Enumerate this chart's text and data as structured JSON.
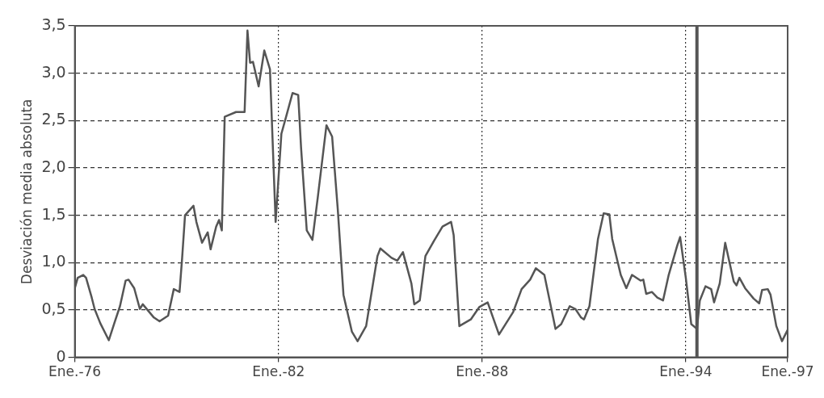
{
  "chart_data": {
    "type": "line",
    "ylabel": "Desviación media absoluta",
    "x": [
      "1976-01",
      "1976-02",
      "1976-04",
      "1976-05",
      "1976-07",
      "1976-08",
      "1976-10",
      "1977-01",
      "1977-03",
      "1977-05",
      "1977-07",
      "1977-08",
      "1977-10",
      "1977-12",
      "1978-01",
      "1978-05",
      "1978-07",
      "1978-10",
      "1978-12",
      "1979-02",
      "1979-03",
      "1979-04",
      "1979-07",
      "1979-08",
      "1979-10",
      "1979-12",
      "1980-01",
      "1980-03",
      "1980-04",
      "1980-05",
      "1980-06",
      "1980-10",
      "1981-01",
      "1981-02",
      "1981-03",
      "1981-04",
      "1981-06",
      "1981-08",
      "1981-10",
      "1981-12",
      "1982-02",
      "1982-04",
      "1982-06",
      "1982-08",
      "1982-09",
      "1982-11",
      "1983-01",
      "1983-03",
      "1983-06",
      "1983-08",
      "1983-10",
      "1983-12",
      "1984-03",
      "1984-05",
      "1984-08",
      "1984-12",
      "1985-01",
      "1985-05",
      "1985-07",
      "1985-09",
      "1985-12",
      "1986-01",
      "1986-03",
      "1986-05",
      "1986-08",
      "1986-11",
      "1987-02",
      "1987-03",
      "1987-05",
      "1987-09",
      "1987-12",
      "1988-03",
      "1988-07",
      "1988-12",
      "1989-03",
      "1989-06",
      "1989-08",
      "1989-11",
      "1990-03",
      "1990-05",
      "1990-08",
      "1990-10",
      "1990-12",
      "1991-01",
      "1991-03",
      "1991-06",
      "1991-08",
      "1991-10",
      "1991-11",
      "1992-02",
      "1992-04",
      "1992-06",
      "1992-09",
      "1992-10",
      "1992-11",
      "1993-01",
      "1993-03",
      "1993-05",
      "1993-07",
      "1993-10",
      "1993-11",
      "1994-01",
      "1994-03",
      "1994-05",
      "1994-06",
      "1994-08",
      "1994-10",
      "1994-11",
      "1995-01",
      "1995-03",
      "1995-04",
      "1995-06",
      "1995-07",
      "1995-08",
      "1995-10",
      "1996-01",
      "1996-03",
      "1996-04",
      "1996-06",
      "1996-07",
      "1996-09",
      "1996-11",
      "1997-01"
    ],
    "values": [
      0.73,
      0.84,
      0.87,
      0.84,
      0.63,
      0.51,
      0.36,
      0.18,
      0.36,
      0.54,
      0.81,
      0.82,
      0.73,
      0.51,
      0.56,
      0.42,
      0.38,
      0.44,
      0.72,
      0.69,
      1.05,
      1.5,
      1.6,
      1.43,
      1.21,
      1.32,
      1.14,
      1.38,
      1.45,
      1.34,
      2.54,
      2.59,
      2.59,
      3.45,
      3.11,
      3.12,
      2.86,
      3.24,
      3.04,
      1.43,
      2.36,
      2.57,
      2.79,
      2.77,
      2.21,
      1.34,
      1.24,
      1.7,
      2.45,
      2.33,
      1.56,
      0.66,
      0.27,
      0.17,
      0.33,
      1.07,
      1.15,
      1.05,
      1.02,
      1.11,
      0.78,
      0.56,
      0.6,
      1.07,
      1.23,
      1.38,
      1.43,
      1.29,
      0.33,
      0.4,
      0.53,
      0.58,
      0.24,
      0.48,
      0.72,
      0.82,
      0.94,
      0.87,
      0.3,
      0.35,
      0.54,
      0.51,
      0.42,
      0.4,
      0.54,
      1.25,
      1.52,
      1.51,
      1.25,
      0.87,
      0.73,
      0.87,
      0.81,
      0.82,
      0.67,
      0.69,
      0.63,
      0.6,
      0.87,
      1.18,
      1.27,
      0.84,
      0.35,
      0.3,
      0.6,
      0.75,
      0.72,
      0.58,
      0.78,
      1.21,
      1.07,
      0.8,
      0.76,
      0.84,
      0.73,
      0.62,
      0.57,
      0.71,
      0.72,
      0.66,
      0.33,
      0.17,
      0.29
    ],
    "color": "#555555",
    "xlim": [
      "1976-01",
      "1997-01"
    ],
    "xticks": [
      {
        "value": "1976-01",
        "label": "Ene.-76"
      },
      {
        "value": "1982-01",
        "label": "Ene.-82"
      },
      {
        "value": "1988-01",
        "label": "Ene.-88"
      },
      {
        "value": "1994-01",
        "label": "Ene.-94"
      },
      {
        "value": "1997-01",
        "label": "Ene.-97"
      }
    ],
    "ylim": [
      0,
      3.5
    ],
    "yticks": [
      0,
      {
        "value": 0.5,
        "label": "0,5"
      },
      {
        "value": 1,
        "label": "1,0"
      },
      {
        "value": 1.5,
        "label": "1,5"
      },
      {
        "value": 2,
        "label": "2,0"
      },
      {
        "value": 2.5,
        "label": "2,5"
      },
      {
        "value": 3,
        "label": "3,0"
      },
      {
        "value": 3.5,
        "label": "3,5"
      }
    ],
    "ref_lines": [
      {
        "axis": "x",
        "value": "1994-05",
        "color": "#555555"
      }
    ],
    "grid": true,
    "legend": false,
    "marker": "none",
    "line_style": "solid"
  }
}
